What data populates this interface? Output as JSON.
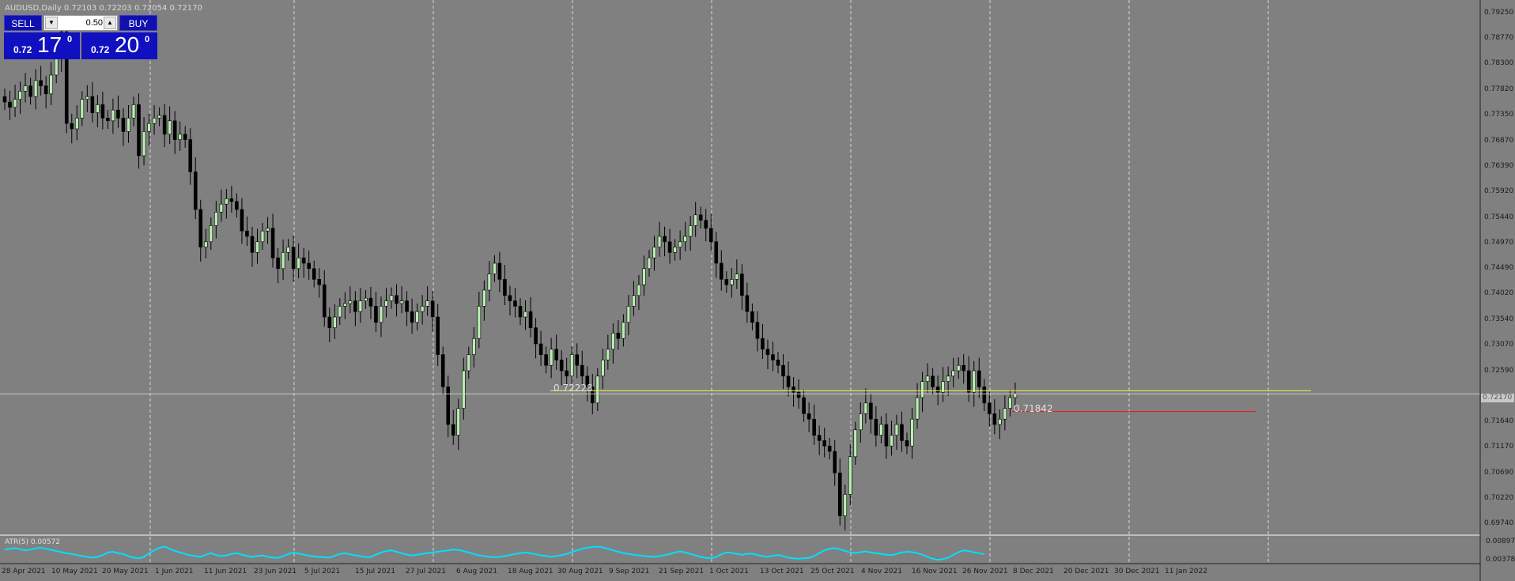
{
  "window": {
    "title": "AUDUSD,Daily  0.72103 0.72203 0.72054 0.72170"
  },
  "trade_panel": {
    "sell_label": "SELL",
    "buy_label": "BUY",
    "lot_value": "0.50",
    "sell_price_small": "0.72",
    "sell_price_big": "17",
    "sell_price_sup": "0",
    "buy_price_small": "0.72",
    "buy_price_big": "20",
    "buy_price_sup": "0"
  },
  "current_price": "0.72170",
  "levels": [
    {
      "label": "0.72228",
      "price": 0.72228,
      "color": "#e8e850"
    },
    {
      "label": "0.71842",
      "price": 0.71842,
      "color": "#e02020"
    }
  ],
  "indicator": {
    "label": "ATR(5) 0.00572"
  },
  "colors": {
    "background": "#808080",
    "bull": "#b8f0b0",
    "bear": "#000000",
    "atr": "#00e0ff",
    "grid": "#d8d8d8"
  },
  "chart_data": {
    "type": "candlestick",
    "symbol": "AUDUSD",
    "timeframe": "Daily",
    "price_axis_ticks": [
      "0.79250",
      "0.78770",
      "0.78300",
      "0.77820",
      "0.77350",
      "0.76870",
      "0.76390",
      "0.75920",
      "0.75440",
      "0.74970",
      "0.74490",
      "0.74020",
      "0.73540",
      "0.73070",
      "0.72590",
      "0.71640",
      "0.71170",
      "0.70690",
      "0.70220",
      "0.69740"
    ],
    "ylim": [
      0.696,
      0.7935
    ],
    "atr_axis_ticks": [
      "0.00897",
      "0.00378"
    ],
    "date_labels": [
      "28 Apr 2021",
      "10 May 2021",
      "20 May 2021",
      "1 Jun 2021",
      "11 Jun 2021",
      "23 Jun 2021",
      "5 Jul 2021",
      "15 Jul 2021",
      "27 Jul 2021",
      "6 Aug 2021",
      "18 Aug 2021",
      "30 Aug 2021",
      "9 Sep 2021",
      "21 Sep 2021",
      "1 Oct 2021",
      "13 Oct 2021",
      "25 Oct 2021",
      "4 Nov 2021",
      "16 Nov 2021",
      "26 Nov 2021",
      "8 Dec 2021",
      "20 Dec 2021",
      "30 Dec 2021",
      "11 Jan 2022"
    ],
    "closes": [
      0.776,
      0.775,
      0.7765,
      0.778,
      0.779,
      0.777,
      0.78,
      0.779,
      0.7775,
      0.781,
      0.784,
      0.789,
      0.772,
      0.771,
      0.773,
      0.7765,
      0.777,
      0.774,
      0.7755,
      0.773,
      0.7725,
      0.7745,
      0.773,
      0.7705,
      0.773,
      0.7755,
      0.766,
      0.7705,
      0.772,
      0.773,
      0.7735,
      0.77,
      0.7725,
      0.769,
      0.77,
      0.769,
      0.763,
      0.756,
      0.749,
      0.75,
      0.753,
      0.7555,
      0.757,
      0.758,
      0.7575,
      0.756,
      0.752,
      0.751,
      0.748,
      0.75,
      0.752,
      0.7525,
      0.747,
      0.745,
      0.748,
      0.749,
      0.745,
      0.747,
      0.746,
      0.745,
      0.743,
      0.742,
      0.736,
      0.734,
      0.736,
      0.738,
      0.7385,
      0.739,
      0.737,
      0.739,
      0.7395,
      0.738,
      0.735,
      0.738,
      0.739,
      0.74,
      0.7385,
      0.739,
      0.737,
      0.735,
      0.737,
      0.738,
      0.739,
      0.736,
      0.729,
      0.723,
      0.716,
      0.714,
      0.719,
      0.726,
      0.729,
      0.732,
      0.738,
      0.741,
      0.744,
      0.746,
      0.743,
      0.74,
      0.739,
      0.738,
      0.736,
      0.737,
      0.734,
      0.731,
      0.729,
      0.727,
      0.73,
      0.728,
      0.726,
      0.725,
      0.729,
      0.727,
      0.725,
      0.723,
      0.72,
      0.725,
      0.728,
      0.73,
      0.733,
      0.732,
      0.735,
      0.738,
      0.74,
      0.742,
      0.745,
      0.747,
      0.749,
      0.751,
      0.75,
      0.748,
      0.749,
      0.75,
      0.751,
      0.753,
      0.755,
      0.754,
      0.7525,
      0.75,
      0.746,
      0.743,
      0.742,
      0.743,
      0.744,
      0.74,
      0.737,
      0.735,
      0.732,
      0.73,
      0.729,
      0.728,
      0.727,
      0.725,
      0.723,
      0.722,
      0.721,
      0.718,
      0.717,
      0.714,
      0.713,
      0.712,
      0.711,
      0.707,
      0.699,
      0.703,
      0.71,
      0.715,
      0.718,
      0.72,
      0.717,
      0.714,
      0.716,
      0.712,
      0.714,
      0.716,
      0.713,
      0.712,
      0.717,
      0.721,
      0.724,
      0.725,
      0.723,
      0.722,
      0.724,
      0.725,
      0.726,
      0.727,
      0.726,
      0.722,
      0.726,
      0.723,
      0.72,
      0.718,
      0.716,
      0.717,
      0.719,
      0.721,
      0.7217
    ],
    "atr_values": [
      0.007,
      0.0072,
      0.0074,
      0.0071,
      0.0068,
      0.007,
      0.0073,
      0.0075,
      0.0072,
      0.0069,
      0.0066,
      0.0063,
      0.006,
      0.0058,
      0.0055,
      0.0052,
      0.005,
      0.0048,
      0.005,
      0.0055,
      0.0062,
      0.0064,
      0.006,
      0.0058,
      0.0052,
      0.0048,
      0.0046,
      0.005,
      0.006,
      0.0068,
      0.0075,
      0.0078,
      0.0072,
      0.0066,
      0.0062,
      0.0058,
      0.0054,
      0.0052,
      0.005,
      0.0056,
      0.006,
      0.0055,
      0.0052,
      0.0054,
      0.0058,
      0.006,
      0.0056,
      0.0053,
      0.005,
      0.0052,
      0.0054,
      0.005,
      0.0048,
      0.0047,
      0.0052,
      0.0058,
      0.0062,
      0.0059,
      0.0056,
      0.0053,
      0.0051,
      0.005,
      0.0049,
      0.0048,
      0.0053,
      0.0058,
      0.006,
      0.0057,
      0.0054,
      0.0052,
      0.0049,
      0.005,
      0.0056,
      0.0062,
      0.0066,
      0.0068,
      0.0064,
      0.006,
      0.0056,
      0.0054,
      0.0056,
      0.0058,
      0.006,
      0.0062,
      0.0064,
      0.0066,
      0.0068,
      0.007,
      0.0069,
      0.0066,
      0.0062,
      0.0058,
      0.0054,
      0.0052,
      0.005,
      0.0049,
      0.005,
      0.0052,
      0.0055,
      0.0058,
      0.006,
      0.0062,
      0.006,
      0.0057,
      0.0054,
      0.0052,
      0.005,
      0.0052,
      0.0055,
      0.0058,
      0.0063,
      0.0068,
      0.0072,
      0.0075,
      0.0077,
      0.0078,
      0.0076,
      0.0072,
      0.0068,
      0.0064,
      0.006,
      0.0058,
      0.0056,
      0.0054,
      0.0052,
      0.0051,
      0.005,
      0.0052,
      0.0055,
      0.0058,
      0.0062,
      0.0065,
      0.0062,
      0.0058,
      0.0054,
      0.005,
      0.0047,
      0.0046,
      0.005,
      0.0057,
      0.0062,
      0.0061,
      0.0058,
      0.0056,
      0.0058,
      0.0059,
      0.0055,
      0.0052,
      0.005,
      0.0053,
      0.0055,
      0.0052,
      0.0048,
      0.0046,
      0.0045,
      0.0046,
      0.0047,
      0.0052,
      0.006,
      0.0068,
      0.0072,
      0.0074,
      0.0071,
      0.0066,
      0.0062,
      0.006,
      0.0063,
      0.0065,
      0.0062,
      0.006,
      0.0058,
      0.0056,
      0.0055,
      0.0058,
      0.0062,
      0.0064,
      0.0063,
      0.006,
      0.0056,
      0.005,
      0.0045,
      0.0042,
      0.0044,
      0.0048,
      0.0056,
      0.0063,
      0.0068,
      0.0066,
      0.0062,
      0.006,
      0.0057
    ]
  }
}
